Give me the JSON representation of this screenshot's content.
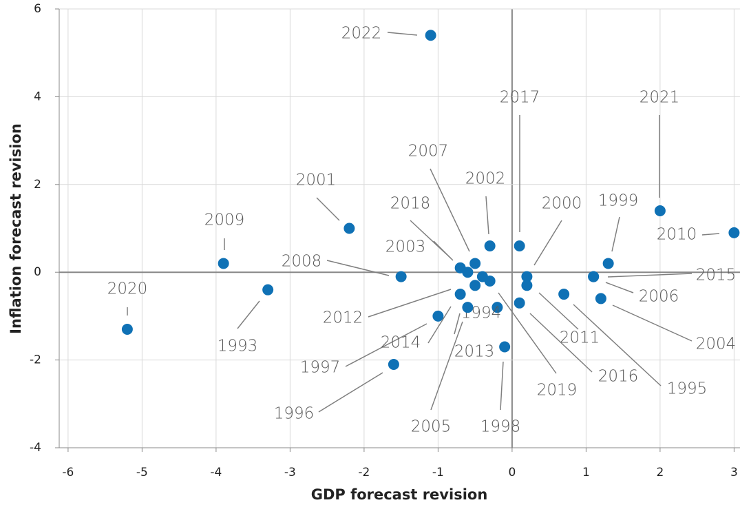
{
  "chart_data": {
    "type": "scatter",
    "x_label": "GDP forecast revision",
    "y_label": "Inflation forecast revision",
    "color": "#0f71b5",
    "grid": true,
    "xlim": [
      -6.12,
      3.08
    ],
    "xticks": [
      -6,
      -5,
      -4,
      -3,
      -2,
      -1,
      0,
      1,
      2,
      3
    ],
    "ylim": [
      -4,
      6
    ],
    "yticks": [
      -4,
      -2,
      0,
      2,
      4,
      6
    ],
    "labels": [
      "1993",
      "1994",
      "1995",
      "1996",
      "1997",
      "1998",
      "1999",
      "2000",
      "2001",
      "2002",
      "2003",
      "2004",
      "2005",
      "2006",
      "2007",
      "2008",
      "2009",
      "2010",
      "2011",
      "2012",
      "2013",
      "2014",
      "2015",
      "2016",
      "2017",
      "2018",
      "2019",
      "2020",
      "2021",
      "2022"
    ],
    "x": [
      -3.3,
      -0.2,
      0.7,
      -1.6,
      -1.0,
      -0.1,
      1.3,
      0.2,
      -2.2,
      -0.3,
      -0.7,
      1.2,
      -0.4,
      1.1,
      -0.5,
      -1.5,
      -3.9,
      3.0,
      0.2,
      -0.7,
      -0.5,
      -0.6,
      1.1,
      0.1,
      0.1,
      -0.6,
      -0.3,
      -5.2,
      2.0,
      -1.1
    ],
    "values": [
      -0.4,
      -0.8,
      -0.5,
      -2.1,
      -1.0,
      -1.7,
      0.2,
      -0.1,
      1.0,
      0.6,
      0.1,
      -0.6,
      -0.1,
      -0.1,
      0.2,
      -0.1,
      0.2,
      0.9,
      -0.3,
      -0.5,
      -0.3,
      -0.8,
      -0.1,
      -0.7,
      0.6,
      0.0,
      -0.2,
      -1.3,
      1.4,
      5.4
    ]
  }
}
